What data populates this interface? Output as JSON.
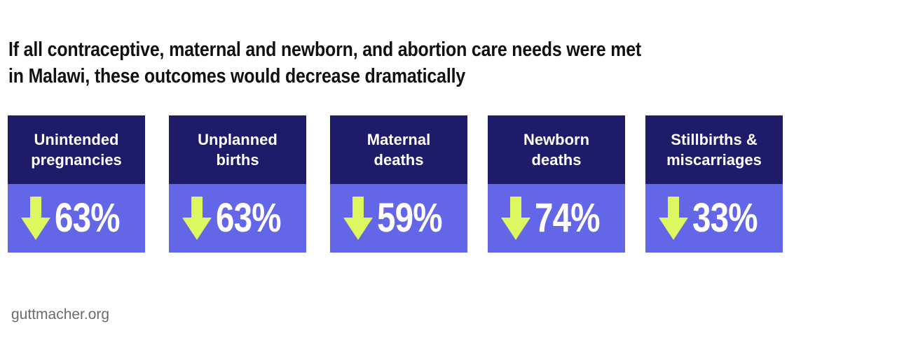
{
  "title": {
    "line1": "If all contraceptive, maternal and newborn, and abortion care needs were met",
    "line2": "in Malawi, these outcomes would decrease dramatically"
  },
  "colors": {
    "header_bg": "#1f1b6b",
    "body_bg": "#6366e6",
    "arrow": "#dcf760"
  },
  "cards": [
    {
      "line1": "Unintended",
      "line2": "pregnancies",
      "value": "63%",
      "direction": "down-arrow-icon"
    },
    {
      "line1": "Unplanned",
      "line2": "births",
      "value": "63%",
      "direction": "down-arrow-icon"
    },
    {
      "line1": "Maternal",
      "line2": "deaths",
      "value": "59%",
      "direction": "down-arrow-icon"
    },
    {
      "line1": "Newborn",
      "line2": "deaths",
      "value": "74%",
      "direction": "down-arrow-icon"
    },
    {
      "line1": "Stillbirths &",
      "line2": "miscarriages",
      "value": "33%",
      "direction": "down-arrow-icon"
    }
  ],
  "source": "guttmacher.org"
}
